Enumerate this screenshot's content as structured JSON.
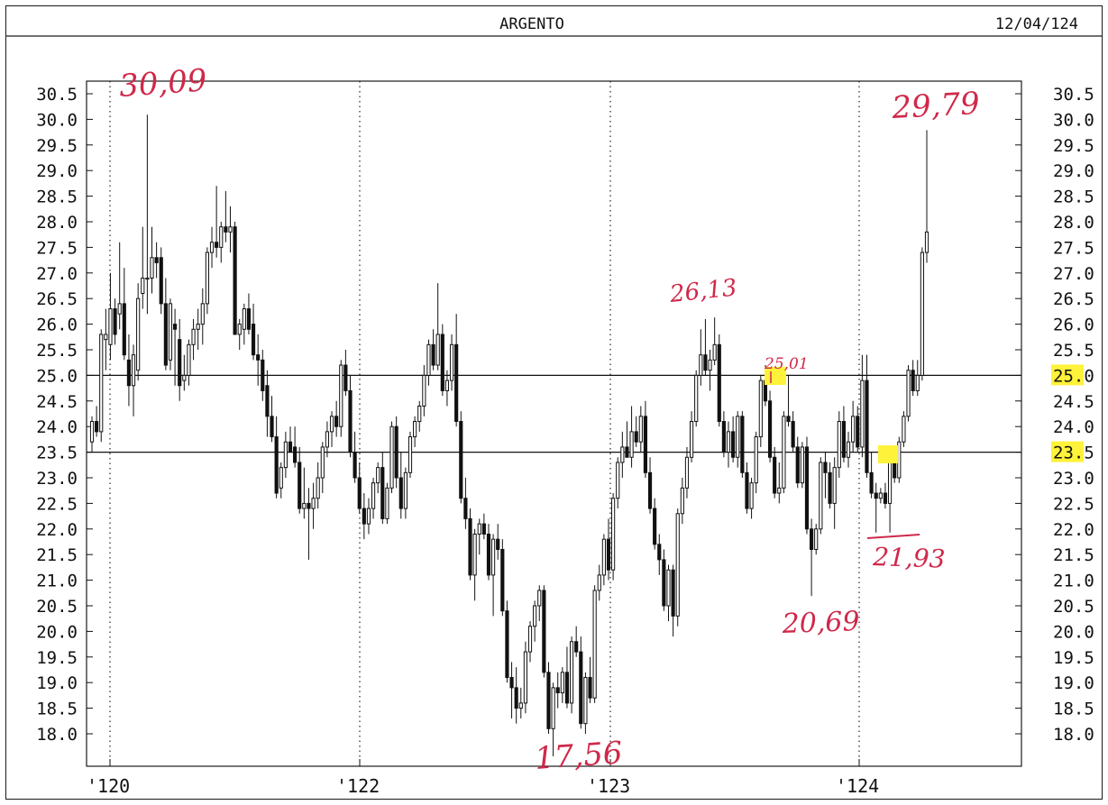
{
  "header": {
    "title": "ARGENTO",
    "date": "12/04/124"
  },
  "colors": {
    "ink": "#111111",
    "annotation": "#d0284a",
    "highlight": "#fff23a"
  },
  "chart_data": {
    "type": "candlestick",
    "title": "ARGENTO",
    "y_ticks": [
      "30.5",
      "30.0",
      "29.5",
      "29.0",
      "28.5",
      "28.0",
      "27.5",
      "27.0",
      "26.5",
      "26.0",
      "25.5",
      "25.0",
      "24.5",
      "24.0",
      "23.5",
      "23.0",
      "22.5",
      "22.0",
      "21.5",
      "21.0",
      "20.5",
      "20.0",
      "19.5",
      "19.0",
      "18.5",
      "18.0"
    ],
    "ylim": [
      17.5,
      30.8
    ],
    "x_ticks": [
      "'120",
      "'122",
      "'123",
      "'124"
    ],
    "grid": "vertical dotted lines at year marks",
    "axes": "price scale on both left and right",
    "horizontal_lines": [
      25.0,
      23.5
    ],
    "highlighted_levels": [
      "25.0",
      "23.5"
    ],
    "candles": [
      {
        "o": 23.7,
        "h": 24.2,
        "l": 23.5,
        "c": 24.1
      },
      {
        "o": 24.1,
        "h": 24.4,
        "l": 23.8,
        "c": 23.9
      },
      {
        "o": 23.9,
        "h": 25.9,
        "l": 23.7,
        "c": 25.8
      },
      {
        "o": 25.7,
        "h": 26.3,
        "l": 25.1,
        "c": 25.8
      },
      {
        "o": 25.6,
        "h": 27.0,
        "l": 25.3,
        "c": 26.3
      },
      {
        "o": 26.3,
        "h": 26.5,
        "l": 25.6,
        "c": 25.8
      },
      {
        "o": 26.2,
        "h": 27.6,
        "l": 25.9,
        "c": 26.4
      },
      {
        "o": 26.4,
        "h": 27.1,
        "l": 25.3,
        "c": 25.4
      },
      {
        "o": 25.3,
        "h": 25.8,
        "l": 24.4,
        "c": 24.8
      },
      {
        "o": 24.8,
        "h": 25.6,
        "l": 24.2,
        "c": 25.4
      },
      {
        "o": 25.1,
        "h": 26.8,
        "l": 24.9,
        "c": 26.5
      },
      {
        "o": 26.6,
        "h": 27.9,
        "l": 26.3,
        "c": 26.9
      },
      {
        "o": 26.9,
        "h": 30.09,
        "l": 26.2,
        "c": 26.9
      },
      {
        "o": 26.9,
        "h": 27.9,
        "l": 26.6,
        "c": 27.3
      },
      {
        "o": 27.3,
        "h": 27.6,
        "l": 26.9,
        "c": 27.2
      },
      {
        "o": 27.3,
        "h": 27.5,
        "l": 26.2,
        "c": 26.4
      },
      {
        "o": 26.4,
        "h": 26.9,
        "l": 25.1,
        "c": 25.2
      },
      {
        "o": 25.3,
        "h": 26.5,
        "l": 25.1,
        "c": 26.4
      },
      {
        "o": 26.0,
        "h": 26.3,
        "l": 24.8,
        "c": 25.9
      },
      {
        "o": 25.7,
        "h": 26.1,
        "l": 24.5,
        "c": 24.8
      },
      {
        "o": 24.9,
        "h": 25.4,
        "l": 24.7,
        "c": 25.0
      },
      {
        "o": 25.0,
        "h": 25.7,
        "l": 24.8,
        "c": 25.6
      },
      {
        "o": 25.6,
        "h": 26.1,
        "l": 25.3,
        "c": 25.9
      },
      {
        "o": 25.9,
        "h": 26.3,
        "l": 25.5,
        "c": 26.0
      },
      {
        "o": 26.0,
        "h": 26.7,
        "l": 25.6,
        "c": 26.4
      },
      {
        "o": 26.4,
        "h": 27.5,
        "l": 26.2,
        "c": 27.4
      },
      {
        "o": 27.4,
        "h": 27.9,
        "l": 27.1,
        "c": 27.6
      },
      {
        "o": 27.6,
        "h": 28.7,
        "l": 27.3,
        "c": 27.5
      },
      {
        "o": 27.5,
        "h": 28.0,
        "l": 27.2,
        "c": 27.9
      },
      {
        "o": 27.9,
        "h": 28.6,
        "l": 27.6,
        "c": 27.8
      },
      {
        "o": 27.8,
        "h": 28.3,
        "l": 27.4,
        "c": 27.9
      },
      {
        "o": 27.9,
        "h": 28.0,
        "l": 25.8,
        "c": 25.8
      },
      {
        "o": 25.8,
        "h": 26.1,
        "l": 25.5,
        "c": 26.0
      },
      {
        "o": 25.9,
        "h": 26.4,
        "l": 25.6,
        "c": 26.3
      },
      {
        "o": 26.3,
        "h": 26.6,
        "l": 25.8,
        "c": 25.9
      },
      {
        "o": 26.0,
        "h": 26.4,
        "l": 25.3,
        "c": 25.4
      },
      {
        "o": 25.4,
        "h": 25.8,
        "l": 24.8,
        "c": 25.3
      },
      {
        "o": 25.3,
        "h": 25.5,
        "l": 24.5,
        "c": 24.7
      },
      {
        "o": 24.8,
        "h": 25.1,
        "l": 23.8,
        "c": 24.2
      },
      {
        "o": 24.2,
        "h": 24.6,
        "l": 23.7,
        "c": 23.8
      },
      {
        "o": 23.8,
        "h": 24.2,
        "l": 22.6,
        "c": 22.7
      },
      {
        "o": 22.8,
        "h": 23.3,
        "l": 22.6,
        "c": 23.2
      },
      {
        "o": 23.2,
        "h": 23.9,
        "l": 23.0,
        "c": 23.7
      },
      {
        "o": 23.7,
        "h": 24.0,
        "l": 23.5,
        "c": 23.5
      },
      {
        "o": 23.6,
        "h": 24.0,
        "l": 23.2,
        "c": 23.3
      },
      {
        "o": 23.3,
        "h": 23.6,
        "l": 22.3,
        "c": 22.4
      },
      {
        "o": 22.4,
        "h": 23.2,
        "l": 22.2,
        "c": 22.5
      },
      {
        "o": 22.5,
        "h": 22.8,
        "l": 21.4,
        "c": 22.4
      },
      {
        "o": 22.4,
        "h": 22.9,
        "l": 22.0,
        "c": 22.6
      },
      {
        "o": 22.6,
        "h": 23.3,
        "l": 22.4,
        "c": 23.0
      },
      {
        "o": 23.0,
        "h": 23.7,
        "l": 22.7,
        "c": 23.6
      },
      {
        "o": 23.6,
        "h": 24.1,
        "l": 23.4,
        "c": 23.9
      },
      {
        "o": 23.9,
        "h": 24.3,
        "l": 23.6,
        "c": 24.2
      },
      {
        "o": 24.2,
        "h": 24.5,
        "l": 23.8,
        "c": 24.0
      },
      {
        "o": 24.0,
        "h": 25.3,
        "l": 23.8,
        "c": 25.2
      },
      {
        "o": 25.2,
        "h": 25.5,
        "l": 24.6,
        "c": 24.7
      },
      {
        "o": 24.7,
        "h": 25.0,
        "l": 23.4,
        "c": 23.5
      },
      {
        "o": 23.5,
        "h": 23.9,
        "l": 22.9,
        "c": 23.0
      },
      {
        "o": 23.0,
        "h": 23.3,
        "l": 22.3,
        "c": 22.4
      },
      {
        "o": 22.4,
        "h": 22.7,
        "l": 21.8,
        "c": 22.1
      },
      {
        "o": 22.1,
        "h": 22.6,
        "l": 21.9,
        "c": 22.4
      },
      {
        "o": 22.4,
        "h": 23.0,
        "l": 22.2,
        "c": 22.9
      },
      {
        "o": 22.9,
        "h": 23.3,
        "l": 22.7,
        "c": 23.2
      },
      {
        "o": 23.2,
        "h": 23.5,
        "l": 22.1,
        "c": 22.2
      },
      {
        "o": 22.2,
        "h": 22.9,
        "l": 22.1,
        "c": 22.8
      },
      {
        "o": 22.8,
        "h": 24.1,
        "l": 22.7,
        "c": 24.0
      },
      {
        "o": 24.0,
        "h": 24.2,
        "l": 22.8,
        "c": 23.0
      },
      {
        "o": 23.0,
        "h": 23.5,
        "l": 22.2,
        "c": 22.4
      },
      {
        "o": 22.4,
        "h": 23.2,
        "l": 22.2,
        "c": 23.1
      },
      {
        "o": 23.1,
        "h": 23.9,
        "l": 23.0,
        "c": 23.8
      },
      {
        "o": 23.8,
        "h": 24.2,
        "l": 23.6,
        "c": 24.1
      },
      {
        "o": 24.1,
        "h": 24.5,
        "l": 23.9,
        "c": 24.4
      },
      {
        "o": 24.4,
        "h": 25.2,
        "l": 24.2,
        "c": 25.0
      },
      {
        "o": 25.0,
        "h": 25.7,
        "l": 24.8,
        "c": 25.6
      },
      {
        "o": 25.6,
        "h": 25.9,
        "l": 25.1,
        "c": 25.2
      },
      {
        "o": 25.2,
        "h": 26.8,
        "l": 25.1,
        "c": 25.8
      },
      {
        "o": 25.8,
        "h": 26.0,
        "l": 24.6,
        "c": 24.7
      },
      {
        "o": 24.7,
        "h": 25.1,
        "l": 24.4,
        "c": 24.9
      },
      {
        "o": 24.9,
        "h": 25.8,
        "l": 24.7,
        "c": 25.6
      },
      {
        "o": 25.6,
        "h": 26.2,
        "l": 24.0,
        "c": 24.1
      },
      {
        "o": 24.1,
        "h": 24.3,
        "l": 22.5,
        "c": 22.6
      },
      {
        "o": 22.6,
        "h": 23.0,
        "l": 22.0,
        "c": 22.2
      },
      {
        "o": 22.2,
        "h": 22.4,
        "l": 21.0,
        "c": 21.1
      },
      {
        "o": 21.1,
        "h": 22.0,
        "l": 20.6,
        "c": 21.9
      },
      {
        "o": 21.9,
        "h": 22.2,
        "l": 21.5,
        "c": 22.1
      },
      {
        "o": 22.1,
        "h": 22.3,
        "l": 21.8,
        "c": 21.9
      },
      {
        "o": 21.9,
        "h": 22.1,
        "l": 21.0,
        "c": 21.1
      },
      {
        "o": 21.1,
        "h": 21.9,
        "l": 20.3,
        "c": 21.8
      },
      {
        "o": 21.8,
        "h": 22.1,
        "l": 21.4,
        "c": 21.6
      },
      {
        "o": 21.6,
        "h": 21.8,
        "l": 20.3,
        "c": 20.4
      },
      {
        "o": 20.4,
        "h": 20.6,
        "l": 19.0,
        "c": 19.1
      },
      {
        "o": 19.1,
        "h": 19.4,
        "l": 18.3,
        "c": 18.9
      },
      {
        "o": 18.9,
        "h": 19.3,
        "l": 18.2,
        "c": 18.5
      },
      {
        "o": 18.5,
        "h": 18.9,
        "l": 18.3,
        "c": 18.6
      },
      {
        "o": 18.6,
        "h": 19.8,
        "l": 18.4,
        "c": 19.6
      },
      {
        "o": 19.6,
        "h": 20.2,
        "l": 19.4,
        "c": 20.1
      },
      {
        "o": 20.1,
        "h": 20.6,
        "l": 19.8,
        "c": 20.5
      },
      {
        "o": 20.5,
        "h": 20.9,
        "l": 20.2,
        "c": 20.8
      },
      {
        "o": 20.8,
        "h": 20.9,
        "l": 19.1,
        "c": 19.2
      },
      {
        "o": 19.2,
        "h": 19.4,
        "l": 18.0,
        "c": 18.1
      },
      {
        "o": 18.1,
        "h": 19.0,
        "l": 17.56,
        "c": 18.9
      },
      {
        "o": 18.9,
        "h": 19.2,
        "l": 18.5,
        "c": 18.8
      },
      {
        "o": 18.8,
        "h": 19.3,
        "l": 18.6,
        "c": 19.2
      },
      {
        "o": 19.2,
        "h": 19.7,
        "l": 18.5,
        "c": 18.6
      },
      {
        "o": 18.6,
        "h": 19.9,
        "l": 18.4,
        "c": 19.8
      },
      {
        "o": 19.8,
        "h": 20.1,
        "l": 19.5,
        "c": 19.6
      },
      {
        "o": 19.6,
        "h": 19.9,
        "l": 18.1,
        "c": 18.2
      },
      {
        "o": 18.2,
        "h": 19.2,
        "l": 18.0,
        "c": 19.1
      },
      {
        "o": 19.1,
        "h": 19.5,
        "l": 18.6,
        "c": 18.7
      },
      {
        "o": 18.7,
        "h": 20.9,
        "l": 18.6,
        "c": 20.8
      },
      {
        "o": 20.8,
        "h": 21.3,
        "l": 20.6,
        "c": 21.1
      },
      {
        "o": 21.1,
        "h": 21.9,
        "l": 20.9,
        "c": 21.8
      },
      {
        "o": 21.8,
        "h": 22.2,
        "l": 21.0,
        "c": 21.2
      },
      {
        "o": 21.2,
        "h": 22.7,
        "l": 21.0,
        "c": 22.6
      },
      {
        "o": 22.6,
        "h": 23.4,
        "l": 22.4,
        "c": 23.3
      },
      {
        "o": 23.3,
        "h": 23.9,
        "l": 23.0,
        "c": 23.6
      },
      {
        "o": 23.6,
        "h": 24.1,
        "l": 23.4,
        "c": 23.4
      },
      {
        "o": 23.4,
        "h": 24.4,
        "l": 23.2,
        "c": 23.9
      },
      {
        "o": 23.9,
        "h": 24.2,
        "l": 23.6,
        "c": 23.7
      },
      {
        "o": 23.7,
        "h": 24.4,
        "l": 23.5,
        "c": 24.2
      },
      {
        "o": 24.2,
        "h": 24.5,
        "l": 23.0,
        "c": 23.1
      },
      {
        "o": 23.1,
        "h": 23.4,
        "l": 22.3,
        "c": 22.4
      },
      {
        "o": 22.4,
        "h": 22.6,
        "l": 21.6,
        "c": 21.7
      },
      {
        "o": 21.7,
        "h": 21.9,
        "l": 21.1,
        "c": 21.4
      },
      {
        "o": 21.4,
        "h": 21.6,
        "l": 20.4,
        "c": 20.5
      },
      {
        "o": 20.5,
        "h": 21.3,
        "l": 20.2,
        "c": 21.2
      },
      {
        "o": 21.2,
        "h": 21.3,
        "l": 19.9,
        "c": 20.3
      },
      {
        "o": 20.3,
        "h": 22.4,
        "l": 20.1,
        "c": 22.3
      },
      {
        "o": 22.3,
        "h": 23.0,
        "l": 22.1,
        "c": 22.8
      },
      {
        "o": 22.8,
        "h": 23.6,
        "l": 22.6,
        "c": 23.4
      },
      {
        "o": 23.4,
        "h": 24.3,
        "l": 23.3,
        "c": 24.1
      },
      {
        "o": 24.1,
        "h": 25.1,
        "l": 24.0,
        "c": 25.0
      },
      {
        "o": 25.0,
        "h": 25.9,
        "l": 24.8,
        "c": 25.4
      },
      {
        "o": 25.4,
        "h": 26.1,
        "l": 25.0,
        "c": 25.1
      },
      {
        "o": 25.1,
        "h": 25.5,
        "l": 24.7,
        "c": 25.3
      },
      {
        "o": 25.3,
        "h": 26.13,
        "l": 25.2,
        "c": 25.6
      },
      {
        "o": 25.6,
        "h": 25.8,
        "l": 24.0,
        "c": 24.1
      },
      {
        "o": 24.1,
        "h": 24.3,
        "l": 23.4,
        "c": 23.5
      },
      {
        "o": 23.5,
        "h": 24.1,
        "l": 23.2,
        "c": 23.9
      },
      {
        "o": 23.9,
        "h": 24.2,
        "l": 23.3,
        "c": 23.4
      },
      {
        "o": 23.4,
        "h": 24.3,
        "l": 23.2,
        "c": 24.2
      },
      {
        "o": 24.2,
        "h": 24.3,
        "l": 23.0,
        "c": 23.1
      },
      {
        "o": 23.1,
        "h": 23.3,
        "l": 22.3,
        "c": 22.4
      },
      {
        "o": 22.4,
        "h": 23.0,
        "l": 22.2,
        "c": 22.9
      },
      {
        "o": 22.9,
        "h": 23.9,
        "l": 22.7,
        "c": 23.8
      },
      {
        "o": 23.8,
        "h": 25.0,
        "l": 23.6,
        "c": 24.9
      },
      {
        "o": 24.9,
        "h": 25.2,
        "l": 24.4,
        "c": 24.5
      },
      {
        "o": 24.5,
        "h": 24.7,
        "l": 23.3,
        "c": 23.4
      },
      {
        "o": 23.4,
        "h": 23.6,
        "l": 22.6,
        "c": 22.7
      },
      {
        "o": 22.7,
        "h": 23.3,
        "l": 22.5,
        "c": 22.8
      },
      {
        "o": 22.8,
        "h": 24.3,
        "l": 22.7,
        "c": 24.2
      },
      {
        "o": 24.2,
        "h": 25.01,
        "l": 24.0,
        "c": 24.1
      },
      {
        "o": 24.1,
        "h": 24.3,
        "l": 23.5,
        "c": 23.6
      },
      {
        "o": 23.6,
        "h": 23.8,
        "l": 22.8,
        "c": 22.9
      },
      {
        "o": 22.9,
        "h": 23.7,
        "l": 22.8,
        "c": 23.6
      },
      {
        "o": 23.6,
        "h": 23.8,
        "l": 21.9,
        "c": 22.0
      },
      {
        "o": 22.0,
        "h": 22.2,
        "l": 20.69,
        "c": 21.6
      },
      {
        "o": 21.6,
        "h": 22.1,
        "l": 21.5,
        "c": 22.0
      },
      {
        "o": 22.0,
        "h": 23.4,
        "l": 21.9,
        "c": 23.3
      },
      {
        "o": 23.3,
        "h": 23.5,
        "l": 22.6,
        "c": 23.1
      },
      {
        "o": 23.1,
        "h": 23.3,
        "l": 22.4,
        "c": 22.5
      },
      {
        "o": 22.5,
        "h": 23.4,
        "l": 22.0,
        "c": 23.2
      },
      {
        "o": 23.2,
        "h": 24.3,
        "l": 23.0,
        "c": 24.1
      },
      {
        "o": 24.1,
        "h": 24.4,
        "l": 23.3,
        "c": 23.4
      },
      {
        "o": 23.4,
        "h": 23.9,
        "l": 23.2,
        "c": 23.7
      },
      {
        "o": 23.7,
        "h": 24.5,
        "l": 23.5,
        "c": 24.2
      },
      {
        "o": 24.2,
        "h": 24.4,
        "l": 23.5,
        "c": 23.6
      },
      {
        "o": 23.6,
        "h": 25.4,
        "l": 23.4,
        "c": 24.9
      },
      {
        "o": 24.9,
        "h": 25.4,
        "l": 23.0,
        "c": 23.1
      },
      {
        "o": 23.1,
        "h": 23.5,
        "l": 22.6,
        "c": 22.7
      },
      {
        "o": 22.7,
        "h": 22.9,
        "l": 21.93,
        "c": 22.6
      },
      {
        "o": 22.6,
        "h": 22.8,
        "l": 22.5,
        "c": 22.7
      },
      {
        "o": 22.7,
        "h": 22.9,
        "l": 22.4,
        "c": 22.5
      },
      {
        "o": 22.5,
        "h": 23.4,
        "l": 21.93,
        "c": 23.3
      },
      {
        "o": 23.3,
        "h": 23.5,
        "l": 22.9,
        "c": 23.0
      },
      {
        "o": 23.0,
        "h": 23.8,
        "l": 22.9,
        "c": 23.7
      },
      {
        "o": 23.7,
        "h": 24.3,
        "l": 23.6,
        "c": 24.2
      },
      {
        "o": 24.2,
        "h": 25.2,
        "l": 24.1,
        "c": 25.1
      },
      {
        "o": 25.1,
        "h": 25.3,
        "l": 24.6,
        "c": 24.7
      },
      {
        "o": 24.7,
        "h": 25.3,
        "l": 24.6,
        "c": 25.0
      },
      {
        "o": 25.0,
        "h": 27.5,
        "l": 24.9,
        "c": 27.4
      },
      {
        "o": 27.4,
        "h": 29.79,
        "l": 27.2,
        "c": 27.8
      }
    ],
    "annotations": [
      {
        "text": "30,09",
        "x_year": "'120",
        "value": 30.09
      },
      {
        "text": "29,79",
        "x_year": "'124",
        "value": 29.79
      },
      {
        "text": "26,13",
        "x_year": "'123",
        "value": 26.13
      },
      {
        "text": "25,01",
        "x_year": "'123",
        "value": 25.01
      },
      {
        "text": "21,93",
        "x_year": "'124",
        "value": 21.93
      },
      {
        "text": "20,69",
        "x_year": "'123",
        "value": 20.69
      },
      {
        "text": "17,56",
        "x_year": "'122",
        "value": 17.56
      }
    ]
  }
}
